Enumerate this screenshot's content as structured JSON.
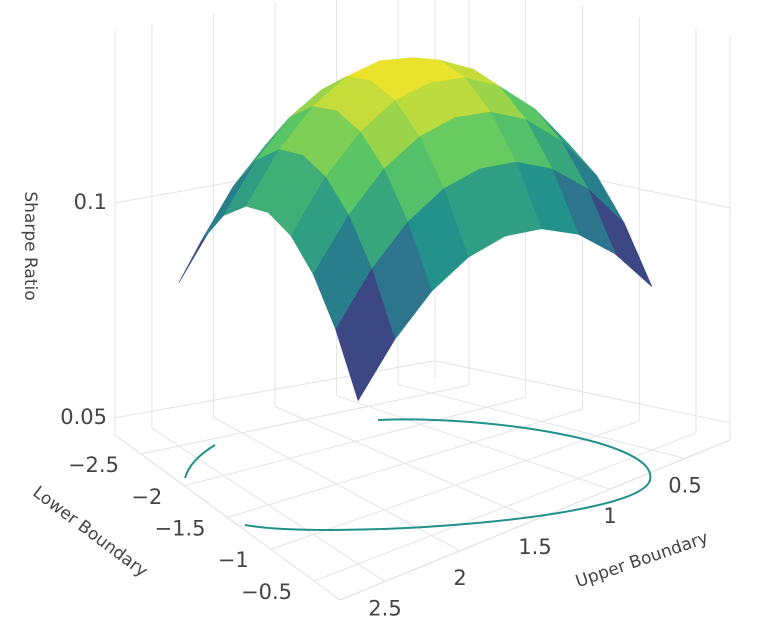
{
  "chart_data": {
    "type": "surface",
    "x": [
      -2.5,
      -2.25,
      -2,
      -1.75,
      -1.5,
      -1.25,
      -1,
      -0.75,
      -0.5
    ],
    "y": [
      0.5,
      0.75,
      1,
      1.25,
      1.5,
      1.75,
      2,
      2.25,
      2.5
    ],
    "z": [
      [
        0.084,
        0.0949,
        0.1028,
        0.1074,
        0.109,
        0.1074,
        0.1028,
        0.0949,
        0.084
      ],
      [
        0.0971,
        0.1081,
        0.1159,
        0.1206,
        0.1221,
        0.1206,
        0.1159,
        0.1081,
        0.0971
      ],
      [
        0.1065,
        0.1174,
        0.1253,
        0.1299,
        0.1315,
        0.1299,
        0.1253,
        0.1174,
        0.1065
      ],
      [
        0.1121,
        0.1231,
        0.1309,
        0.1356,
        0.1371,
        0.1356,
        0.1309,
        0.1231,
        0.1121
      ],
      [
        0.114,
        0.1249,
        0.1328,
        0.1374,
        0.139,
        0.1374,
        0.1328,
        0.1249,
        0.114
      ],
      [
        0.1121,
        0.1231,
        0.1309,
        0.1356,
        0.1371,
        0.1356,
        0.1309,
        0.1231,
        0.1121
      ],
      [
        0.1065,
        0.1174,
        0.1253,
        0.1299,
        0.1315,
        0.1299,
        0.1253,
        0.1174,
        0.1065
      ],
      [
        0.0971,
        0.1081,
        0.1159,
        0.1206,
        0.1221,
        0.1206,
        0.1159,
        0.1081,
        0.0971
      ],
      [
        0.084,
        0.0949,
        0.1028,
        0.1074,
        0.109,
        0.1074,
        0.1028,
        0.0949,
        0.084
      ]
    ],
    "xlim": [
      -2.8,
      -0.2
    ],
    "ylim": [
      0.2,
      2.8
    ],
    "zlim": [
      0.046,
      0.14
    ],
    "xticks": [
      {
        "value": -2.5,
        "label": "−2.5"
      },
      {
        "value": -2,
        "label": "−2"
      },
      {
        "value": -1.5,
        "label": "−1.5"
      },
      {
        "value": -1,
        "label": "−1"
      },
      {
        "value": -0.5,
        "label": "−0.5"
      }
    ],
    "yticks": [
      0.5,
      1,
      1.5,
      2,
      2.5
    ],
    "zticks": [
      0.05,
      0.1
    ],
    "xlabel": "Lower Boundary",
    "ylabel": "Upper Boundary",
    "zlabel": "Sharpe Ratio",
    "colorscale": "viridis",
    "grid": true
  }
}
